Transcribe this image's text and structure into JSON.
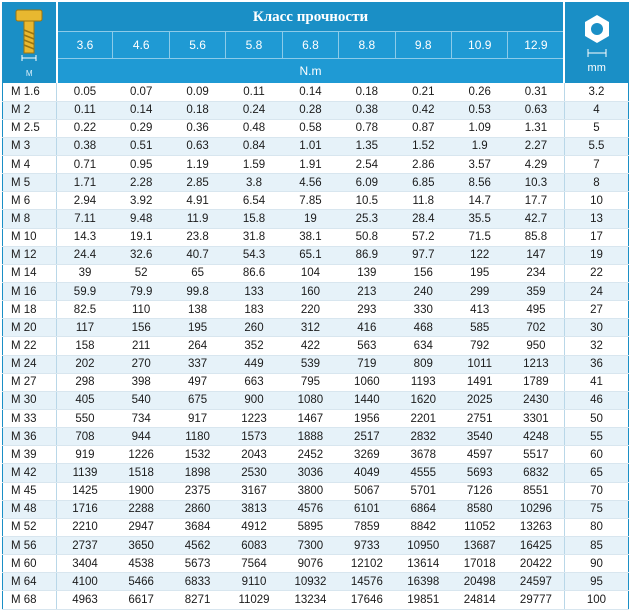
{
  "header": {
    "title": "Класс прочности",
    "unit": "N.m",
    "left_label": "M",
    "right_label": "mm",
    "classes": [
      "3.6",
      "4.6",
      "5.6",
      "5.8",
      "6.8",
      "8.8",
      "9.8",
      "10.9",
      "12.9"
    ]
  },
  "rows": [
    {
      "m": "M 1.6",
      "v": [
        "0.05",
        "0.07",
        "0.09",
        "0.11",
        "0.14",
        "0.18",
        "0.21",
        "0.26",
        "0.31"
      ],
      "mm": "3.2"
    },
    {
      "m": "M 2",
      "v": [
        "0.11",
        "0.14",
        "0.18",
        "0.24",
        "0.28",
        "0.38",
        "0.42",
        "0.53",
        "0.63"
      ],
      "mm": "4"
    },
    {
      "m": "M 2.5",
      "v": [
        "0.22",
        "0.29",
        "0.36",
        "0.48",
        "0.58",
        "0.78",
        "0.87",
        "1.09",
        "1.31"
      ],
      "mm": "5"
    },
    {
      "m": "M 3",
      "v": [
        "0.38",
        "0.51",
        "0.63",
        "0.84",
        "1.01",
        "1.35",
        "1.52",
        "1.9",
        "2.27"
      ],
      "mm": "5.5"
    },
    {
      "m": "M 4",
      "v": [
        "0.71",
        "0.95",
        "1.19",
        "1.59",
        "1.91",
        "2.54",
        "2.86",
        "3.57",
        "4.29"
      ],
      "mm": "7"
    },
    {
      "m": "M 5",
      "v": [
        "1.71",
        "2.28",
        "2.85",
        "3.8",
        "4.56",
        "6.09",
        "6.85",
        "8.56",
        "10.3"
      ],
      "mm": "8"
    },
    {
      "m": "M 6",
      "v": [
        "2.94",
        "3.92",
        "4.91",
        "6.54",
        "7.85",
        "10.5",
        "11.8",
        "14.7",
        "17.7"
      ],
      "mm": "10"
    },
    {
      "m": "M 8",
      "v": [
        "7.11",
        "9.48",
        "11.9",
        "15.8",
        "19",
        "25.3",
        "28.4",
        "35.5",
        "42.7"
      ],
      "mm": "13"
    },
    {
      "m": "M 10",
      "v": [
        "14.3",
        "19.1",
        "23.8",
        "31.8",
        "38.1",
        "50.8",
        "57.2",
        "71.5",
        "85.8"
      ],
      "mm": "17"
    },
    {
      "m": "M 12",
      "v": [
        "24.4",
        "32.6",
        "40.7",
        "54.3",
        "65.1",
        "86.9",
        "97.7",
        "122",
        "147"
      ],
      "mm": "19"
    },
    {
      "m": "M 14",
      "v": [
        "39",
        "52",
        "65",
        "86.6",
        "104",
        "139",
        "156",
        "195",
        "234"
      ],
      "mm": "22"
    },
    {
      "m": "M 16",
      "v": [
        "59.9",
        "79.9",
        "99.8",
        "133",
        "160",
        "213",
        "240",
        "299",
        "359"
      ],
      "mm": "24"
    },
    {
      "m": "M 18",
      "v": [
        "82.5",
        "110",
        "138",
        "183",
        "220",
        "293",
        "330",
        "413",
        "495"
      ],
      "mm": "27"
    },
    {
      "m": "M 20",
      "v": [
        "117",
        "156",
        "195",
        "260",
        "312",
        "416",
        "468",
        "585",
        "702"
      ],
      "mm": "30"
    },
    {
      "m": "M 22",
      "v": [
        "158",
        "211",
        "264",
        "352",
        "422",
        "563",
        "634",
        "792",
        "950"
      ],
      "mm": "32"
    },
    {
      "m": "M 24",
      "v": [
        "202",
        "270",
        "337",
        "449",
        "539",
        "719",
        "809",
        "1011",
        "1213"
      ],
      "mm": "36"
    },
    {
      "m": "M 27",
      "v": [
        "298",
        "398",
        "497",
        "663",
        "795",
        "1060",
        "1193",
        "1491",
        "1789"
      ],
      "mm": "41"
    },
    {
      "m": "M 30",
      "v": [
        "405",
        "540",
        "675",
        "900",
        "1080",
        "1440",
        "1620",
        "2025",
        "2430"
      ],
      "mm": "46"
    },
    {
      "m": "M 33",
      "v": [
        "550",
        "734",
        "917",
        "1223",
        "1467",
        "1956",
        "2201",
        "2751",
        "3301"
      ],
      "mm": "50"
    },
    {
      "m": "M 36",
      "v": [
        "708",
        "944",
        "1180",
        "1573",
        "1888",
        "2517",
        "2832",
        "3540",
        "4248"
      ],
      "mm": "55"
    },
    {
      "m": "M 39",
      "v": [
        "919",
        "1226",
        "1532",
        "2043",
        "2452",
        "3269",
        "3678",
        "4597",
        "5517"
      ],
      "mm": "60"
    },
    {
      "m": "M 42",
      "v": [
        "1139",
        "1518",
        "1898",
        "2530",
        "3036",
        "4049",
        "4555",
        "5693",
        "6832"
      ],
      "mm": "65"
    },
    {
      "m": "M 45",
      "v": [
        "1425",
        "1900",
        "2375",
        "3167",
        "3800",
        "5067",
        "5701",
        "7126",
        "8551"
      ],
      "mm": "70"
    },
    {
      "m": "M 48",
      "v": [
        "1716",
        "2288",
        "2860",
        "3813",
        "4576",
        "6101",
        "6864",
        "8580",
        "10296"
      ],
      "mm": "75"
    },
    {
      "m": "M 52",
      "v": [
        "2210",
        "2947",
        "3684",
        "4912",
        "5895",
        "7859",
        "8842",
        "11052",
        "13263"
      ],
      "mm": "80"
    },
    {
      "m": "M 56",
      "v": [
        "2737",
        "3650",
        "4562",
        "6083",
        "7300",
        "9733",
        "10950",
        "13687",
        "16425"
      ],
      "mm": "85"
    },
    {
      "m": "M 60",
      "v": [
        "3404",
        "4538",
        "5673",
        "7564",
        "9076",
        "12102",
        "13614",
        "17018",
        "20422"
      ],
      "mm": "90"
    },
    {
      "m": "M 64",
      "v": [
        "4100",
        "5466",
        "6833",
        "9110",
        "10932",
        "14576",
        "16398",
        "20498",
        "24597"
      ],
      "mm": "95"
    },
    {
      "m": "M 68",
      "v": [
        "4963",
        "6617",
        "8271",
        "11029",
        "13234",
        "17646",
        "19851",
        "24814",
        "29777"
      ],
      "mm": "100"
    }
  ],
  "icons": {
    "left": "bolt-icon",
    "right": "hex-nut-icon"
  }
}
